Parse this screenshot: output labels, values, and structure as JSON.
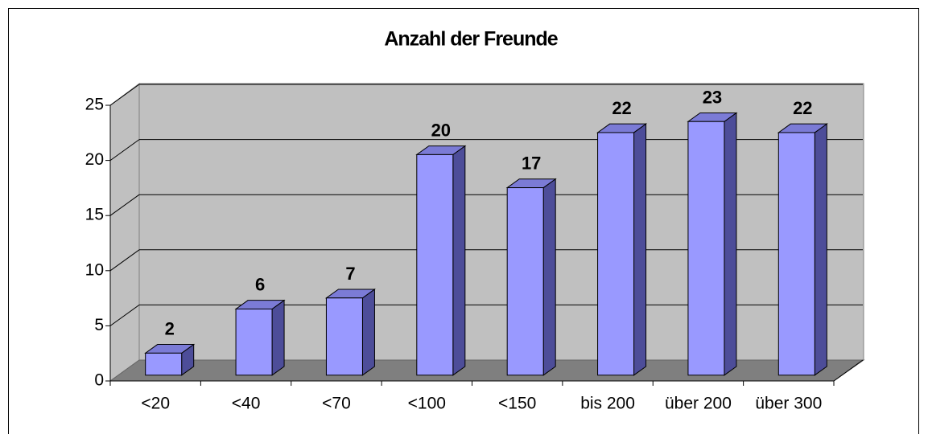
{
  "chart_data": {
    "type": "bar3d",
    "title": "Anzahl der Freunde",
    "categories": [
      "<20",
      "<40",
      "<70",
      "<100",
      "<150",
      "bis 200",
      "über 200",
      "über 300"
    ],
    "values": [
      2,
      6,
      7,
      20,
      17,
      22,
      23,
      22
    ],
    "color": "#9999ff",
    "ylim": [
      0,
      25
    ],
    "yticks": [
      0,
      5,
      10,
      15,
      20,
      25
    ],
    "grid": true
  }
}
